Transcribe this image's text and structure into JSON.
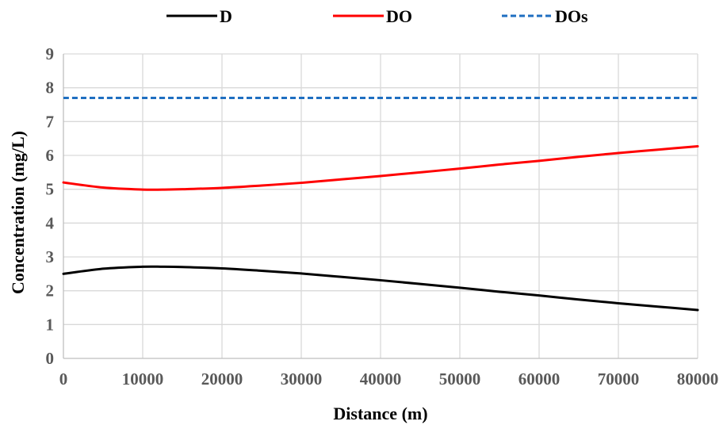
{
  "chart_data": {
    "type": "line",
    "title": "",
    "xlabel": "Distance (m)",
    "ylabel": "Concentration  (mg/L)",
    "xlim": [
      0,
      80000
    ],
    "ylim": [
      0,
      9
    ],
    "x_ticks": [
      "0",
      "10000",
      "20000",
      "30000",
      "40000",
      "50000",
      "60000",
      "70000",
      "80000"
    ],
    "y_ticks": [
      "0",
      "1",
      "2",
      "3",
      "4",
      "5",
      "6",
      "7",
      "8",
      "9"
    ],
    "grid": true,
    "legend_position": "top",
    "x": [
      0,
      5000,
      10000,
      12500,
      15000,
      20000,
      25000,
      30000,
      35000,
      40000,
      45000,
      50000,
      55000,
      60000,
      65000,
      70000,
      75000,
      80000
    ],
    "series": [
      {
        "name": "D",
        "color": "#000000",
        "dash": "solid",
        "values": [
          2.5,
          2.65,
          2.71,
          2.71,
          2.7,
          2.66,
          2.59,
          2.51,
          2.41,
          2.31,
          2.2,
          2.09,
          1.97,
          1.86,
          1.74,
          1.63,
          1.53,
          1.43
        ]
      },
      {
        "name": "DO",
        "color": "#ff0000",
        "dash": "solid",
        "values": [
          5.2,
          5.05,
          4.99,
          4.99,
          5.0,
          5.04,
          5.11,
          5.19,
          5.29,
          5.39,
          5.5,
          5.61,
          5.73,
          5.84,
          5.96,
          6.07,
          6.17,
          6.27
        ]
      },
      {
        "name": "DOs",
        "color": "#1f6fc1",
        "dash": "dashed",
        "values": [
          7.7,
          7.7,
          7.7,
          7.7,
          7.7,
          7.7,
          7.7,
          7.7,
          7.7,
          7.7,
          7.7,
          7.7,
          7.7,
          7.7,
          7.7,
          7.7,
          7.7,
          7.7
        ]
      }
    ]
  }
}
